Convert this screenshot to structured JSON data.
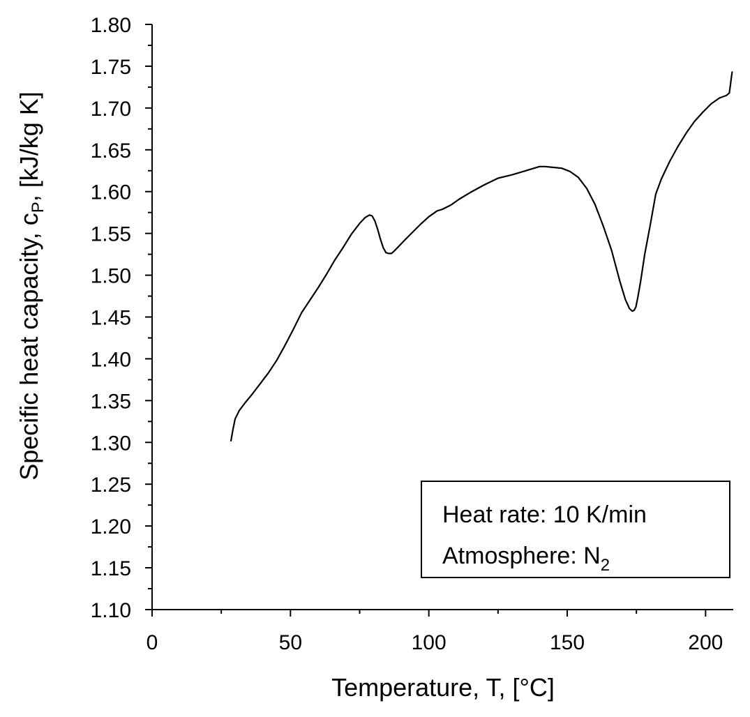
{
  "chart_data": {
    "type": "line",
    "title": "",
    "xlabel": "Temperature, T, [°C]",
    "ylabel": {
      "prefix": "Specific heat capacity, c",
      "subscript": "P",
      "suffix": ", [kJ/kg K]"
    },
    "xlim": [
      0,
      210
    ],
    "ylim": [
      1.1,
      1.8
    ],
    "xticks": [
      0,
      50,
      100,
      150,
      200
    ],
    "xtick_labels": [
      "0",
      "50",
      "100",
      "150",
      "200"
    ],
    "xminor_step": 25,
    "yticks": [
      1.1,
      1.15,
      1.2,
      1.25,
      1.3,
      1.35,
      1.4,
      1.45,
      1.5,
      1.55,
      1.6,
      1.65,
      1.7,
      1.75,
      1.8
    ],
    "ytick_labels": [
      "1.10",
      "1.15",
      "1.20",
      "1.25",
      "1.30",
      "1.35",
      "1.40",
      "1.45",
      "1.50",
      "1.55",
      "1.60",
      "1.65",
      "1.70",
      "1.75",
      "1.80"
    ],
    "yminor_step": 0.025,
    "grid": false,
    "legend_position": "bottom-right",
    "annotation": {
      "line1": "Heat rate: 10 K/min",
      "line2_prefix": "Atmosphere: N",
      "line2_subscript": "2"
    },
    "series": [
      {
        "name": "cp",
        "color": "#000000",
        "x": [
          28.5,
          29.2,
          30.0,
          31.5,
          33.5,
          36.0,
          39.0,
          42.0,
          45.0,
          48.0,
          51.0,
          54.0,
          57.0,
          60.0,
          63.0,
          66.0,
          69.0,
          72.0,
          75.0,
          77.0,
          78.5,
          79.5,
          80.5,
          81.5,
          82.5,
          83.5,
          84.5,
          85.5,
          86.5,
          87.5,
          89.0,
          91.0,
          94.0,
          97.0,
          100.0,
          103.0,
          105.0,
          108.0,
          111.0,
          115.0,
          120.0,
          125.0,
          130.0,
          135.0,
          138.0,
          140.0,
          142.0,
          145.0,
          148.0,
          151.0,
          154.0,
          157.0,
          160.0,
          163.0,
          166.0,
          169.0,
          171.0,
          172.5,
          173.5,
          174.2,
          174.8,
          175.5,
          176.5,
          178.0,
          180.0,
          182.0,
          184.0,
          187.0,
          190.0,
          193.0,
          196.0,
          199.0,
          202.0,
          205.0,
          207.5,
          208.6,
          209.0,
          209.3,
          209.6
        ],
        "y": [
          1.302,
          1.315,
          1.328,
          1.338,
          1.347,
          1.357,
          1.37,
          1.383,
          1.398,
          1.416,
          1.435,
          1.455,
          1.47,
          1.485,
          1.501,
          1.518,
          1.533,
          1.549,
          1.562,
          1.569,
          1.572,
          1.571,
          1.565,
          1.555,
          1.543,
          1.533,
          1.527,
          1.526,
          1.526,
          1.529,
          1.534,
          1.541,
          1.551,
          1.561,
          1.57,
          1.577,
          1.579,
          1.584,
          1.591,
          1.599,
          1.608,
          1.616,
          1.62,
          1.625,
          1.628,
          1.63,
          1.63,
          1.629,
          1.628,
          1.624,
          1.617,
          1.604,
          1.585,
          1.559,
          1.53,
          1.493,
          1.471,
          1.46,
          1.457,
          1.458,
          1.462,
          1.473,
          1.492,
          1.525,
          1.56,
          1.597,
          1.615,
          1.636,
          1.654,
          1.67,
          1.684,
          1.695,
          1.705,
          1.712,
          1.715,
          1.718,
          1.728,
          1.736,
          1.743
        ]
      }
    ]
  }
}
